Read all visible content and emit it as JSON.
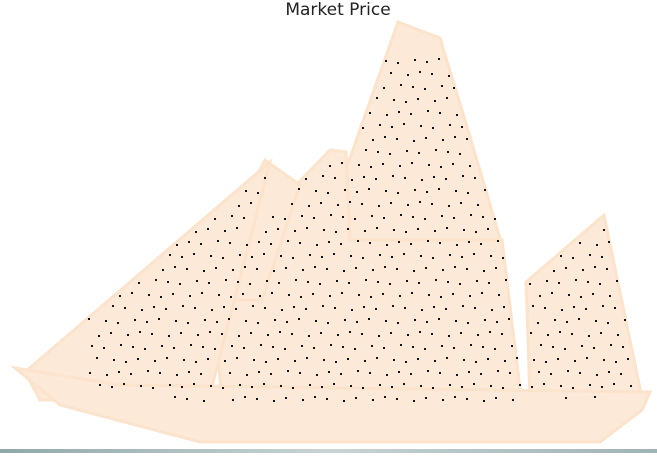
{
  "title": "Market Price"
}
